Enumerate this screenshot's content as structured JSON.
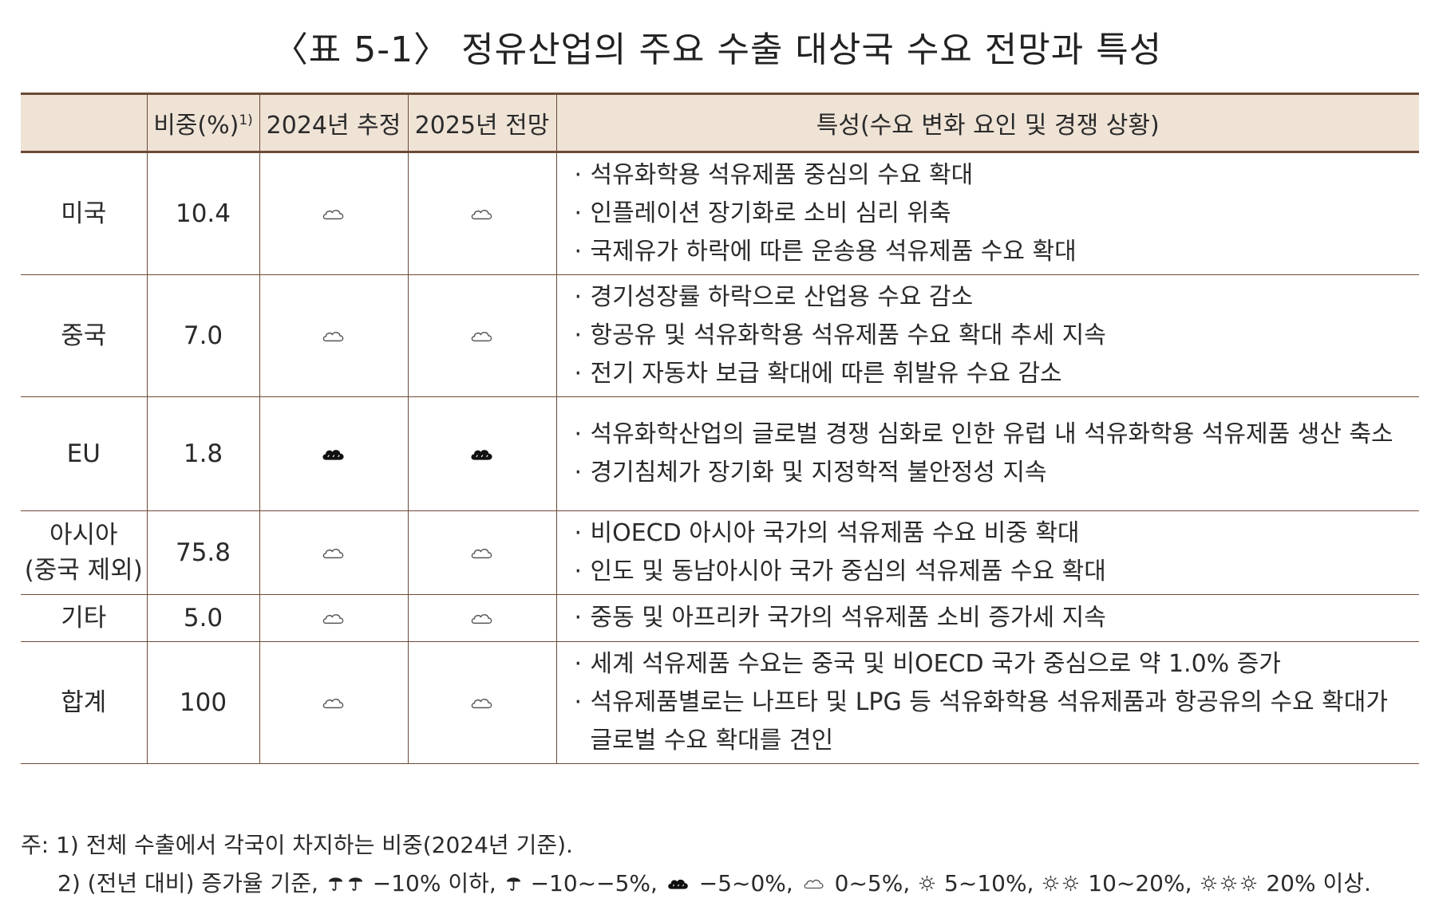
{
  "title": "〈표 5-1〉 정유산업의 주요 수출 대상국 수요 전망과 특성",
  "colors": {
    "border": "#6b4a36",
    "header_bg": "#efe3d6"
  },
  "table": {
    "headers": [
      "",
      "비중(%)",
      "2024년 추정",
      "2025년 전망",
      "특성(수요 변화 요인 및 경쟁 상황)"
    ],
    "header_sup": "1)",
    "rows": [
      {
        "region": "미국",
        "region_sub": "",
        "share": "10.4",
        "est_2024": "cloud-icon",
        "fc_2025": "cloud-icon",
        "features": [
          "석유화학용 석유제품 중심의 수요 확대",
          "인플레이션 장기화로 소비 심리 위축",
          "국제유가 하락에 따른 운송용 석유제품 수요 확대"
        ]
      },
      {
        "region": "중국",
        "region_sub": "",
        "share": "7.0",
        "est_2024": "cloud-icon",
        "fc_2025": "cloud-icon",
        "features": [
          "경기성장률 하락으로 산업용 수요 감소",
          "항공유 및 석유화학용 석유제품 수요 확대 추세 지속",
          "전기 자동차 보급 확대에 따른 휘발유 수요 감소"
        ]
      },
      {
        "region": "EU",
        "region_sub": "",
        "share": "1.8",
        "est_2024": "dark-cloud-icon",
        "fc_2025": "dark-cloud-icon",
        "features": [
          "석유화학산업의 글로벌 경쟁 심화로 인한 유럽 내 석유화학용 석유제품 생산 축소",
          "경기침체가 장기화 및 지정학적 불안정성 지속"
        ]
      },
      {
        "region": "아시아",
        "region_sub": "(중국 제외)",
        "share": "75.8",
        "est_2024": "cloud-icon",
        "fc_2025": "cloud-icon",
        "features": [
          "비OECD 아시아 국가의 석유제품 수요 비중 확대",
          "인도 및 동남아시아 국가 중심의 석유제품 수요  확대"
        ]
      },
      {
        "region": "기타",
        "region_sub": "",
        "share": "5.0",
        "est_2024": "cloud-icon",
        "fc_2025": "cloud-icon",
        "features": [
          "중동 및 아프리카 국가의 석유제품 소비 증가세 지속"
        ]
      },
      {
        "region": "합계",
        "region_sub": "",
        "share": "100",
        "est_2024": "cloud-icon",
        "fc_2025": "cloud-icon",
        "features": [
          "세계 석유제품 수요는 중국 및 비OECD 국가 중심으로 약 1.0% 증가",
          "석유제품별로는 나프타 및 LPG 등 석유화학용 석유제품과 항공유의 수요 확대가 글로벌 수요 확대를 견인"
        ]
      }
    ]
  },
  "notes": {
    "prefix": "주:",
    "note1": "1) 전체 수출에서 각국이 차지하는 비중(2024년 기준).",
    "note2_prefix": "2) (전년 대비) 증가율 기준,",
    "legend": [
      {
        "icons": [
          "umbrella-icon",
          "umbrella-icon"
        ],
        "text": "−10% 이하,"
      },
      {
        "icons": [
          "umbrella-icon"
        ],
        "text": "−10~−5%,"
      },
      {
        "icons": [
          "dark-cloud-icon"
        ],
        "text": "−5~0%,"
      },
      {
        "icons": [
          "cloud-icon"
        ],
        "text": "0~5%,"
      },
      {
        "icons": [
          "sun-icon"
        ],
        "text": "5~10%,"
      },
      {
        "icons": [
          "sun-icon",
          "sun-icon"
        ],
        "text": "10~20%,"
      },
      {
        "icons": [
          "sun-icon",
          "sun-icon",
          "sun-icon"
        ],
        "text": "20% 이상."
      }
    ]
  }
}
